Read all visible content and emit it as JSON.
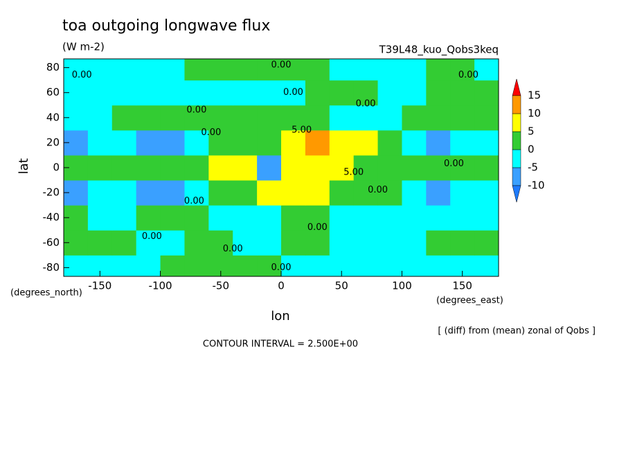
{
  "chart_data": {
    "type": "contour",
    "title": "toa outgoing longwave flux",
    "subtitle": "(W m-2)",
    "run_label": "T39L48_kuo_Qobs3keq",
    "xlabel": "lon",
    "ylabel": "lat",
    "x_unit": "(degrees_east)",
    "y_unit": "(degrees_north)",
    "footnote": "[ (diff) from (mean) zonal of Qobs ]",
    "contour_interval": "CONTOUR INTERVAL = 2.500E+00",
    "xlim": [
      -180,
      180
    ],
    "ylim": [
      -87,
      87
    ],
    "xticks": [
      -150,
      -100,
      -50,
      0,
      50,
      100,
      150
    ],
    "yticks": [
      -80,
      -60,
      -40,
      -20,
      0,
      20,
      40,
      60,
      80
    ],
    "levels": [
      -10,
      -5,
      0,
      5,
      10,
      15
    ],
    "colors": [
      "#1e7bff",
      "#3aa0ff",
      "#00ffff",
      "#33cc33",
      "#ffff00",
      "#ff9900",
      "#ff0000"
    ],
    "x": [
      -170,
      -150,
      -130,
      -110,
      -90,
      -70,
      -50,
      -30,
      -10,
      10,
      30,
      50,
      70,
      90,
      110,
      130,
      150,
      170
    ],
    "y": [
      -80,
      -60,
      -40,
      -20,
      0,
      20,
      40,
      60,
      80
    ],
    "z": [
      [
        -1,
        -1,
        -1,
        -1,
        1,
        1,
        1,
        1,
        1,
        -1,
        -1,
        -1,
        -1,
        -1,
        -1,
        -1,
        -1,
        -1
      ],
      [
        1,
        1,
        1,
        -1,
        -1,
        1,
        1,
        -1,
        -1,
        1,
        1,
        -1,
        -1,
        -1,
        -1,
        1,
        1,
        1
      ],
      [
        1,
        -1,
        -1,
        1,
        1,
        1,
        -1,
        -1,
        -1,
        1,
        1,
        -1,
        -1,
        -1,
        -1,
        -1,
        -1,
        -1
      ],
      [
        -6,
        -2,
        -2,
        -6,
        -7,
        -3,
        1,
        3,
        7,
        7,
        7,
        4,
        3,
        1,
        -2,
        -6,
        -3,
        -2
      ],
      [
        1,
        1,
        2,
        1,
        1,
        2,
        5,
        6,
        -6,
        6,
        6,
        7,
        3,
        1,
        1,
        1,
        1,
        1
      ],
      [
        -7,
        -3,
        -2,
        -6,
        -7,
        -3,
        1,
        1,
        4,
        7,
        11,
        6,
        6,
        3,
        -2,
        -6,
        -3,
        -2
      ],
      [
        -1,
        -1,
        1,
        1,
        1,
        1,
        1,
        1,
        1,
        2,
        1,
        -1,
        -1,
        -1,
        1,
        1,
        1,
        1
      ],
      [
        -1,
        -1,
        -1,
        -1,
        -1,
        -1,
        -1,
        -1,
        -1,
        -1,
        1,
        1,
        1,
        -1,
        -1,
        1,
        1,
        1
      ],
      [
        -1,
        -1,
        -1,
        -1,
        -1,
        1,
        1,
        1,
        1,
        1,
        1,
        -1,
        -1,
        -1,
        -1,
        1,
        1,
        -1
      ]
    ],
    "contour_labels": [
      {
        "value": 0,
        "label": "0.00",
        "lon": -165,
        "lat": 74
      },
      {
        "value": 0,
        "label": "0.00",
        "lon": 0,
        "lat": 82
      },
      {
        "value": 0,
        "label": "0.00",
        "lon": 10,
        "lat": 60
      },
      {
        "value": 0,
        "label": "0.00",
        "lon": 155,
        "lat": 74
      },
      {
        "value": 0,
        "label": "0.00",
        "lon": -70,
        "lat": 46
      },
      {
        "value": 0,
        "label": "0.00",
        "lon": 70,
        "lat": 51
      },
      {
        "value": 0,
        "label": "0.00",
        "lon": -58,
        "lat": 28
      },
      {
        "value": 5,
        "label": "5.00",
        "lon": 17,
        "lat": 30
      },
      {
        "value": 5,
        "label": "5.00",
        "lon": 60,
        "lat": -4
      },
      {
        "value": 0,
        "label": "0.00",
        "lon": 80,
        "lat": -18
      },
      {
        "value": 0,
        "label": "0.00",
        "lon": 143,
        "lat": 3
      },
      {
        "value": 0,
        "label": "0.00",
        "lon": -72,
        "lat": -27
      },
      {
        "value": 0,
        "label": "0.00",
        "lon": -107,
        "lat": -55
      },
      {
        "value": 0,
        "label": "0.00",
        "lon": 30,
        "lat": -48
      },
      {
        "value": 0,
        "label": "0.00",
        "lon": -40,
        "lat": -65
      },
      {
        "value": 0,
        "label": "0.00",
        "lon": 0,
        "lat": -80
      }
    ]
  }
}
